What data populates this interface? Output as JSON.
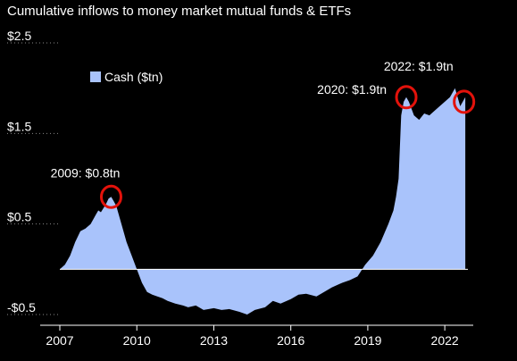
{
  "chart_data": {
    "type": "area",
    "title": "Cumulative inflows to money market mutual funds & ETFs",
    "xlabel": "",
    "ylabel": "",
    "xlim": [
      2007,
      2022.9
    ],
    "ylim": [
      -0.5,
      2.5
    ],
    "grid": false,
    "legend_position": "top-left",
    "x_ticks": [
      "2007",
      "2010",
      "2013",
      "2016",
      "2019",
      "2022"
    ],
    "y_ticks": [
      "$2.5",
      "$1.5",
      "$0.5",
      "-$0.5"
    ],
    "series": [
      {
        "name": "Cash ($tn)",
        "color": "#a9c3fb",
        "x": [
          2007.0,
          2007.2,
          2007.4,
          2007.6,
          2007.8,
          2008.0,
          2008.2,
          2008.4,
          2008.5,
          2008.6,
          2008.8,
          2008.9,
          2009.0,
          2009.1,
          2009.2,
          2009.4,
          2009.6,
          2009.8,
          2010.0,
          2010.2,
          2010.4,
          2010.6,
          2010.8,
          2011.0,
          2011.2,
          2011.5,
          2011.8,
          2012.0,
          2012.3,
          2012.6,
          2013.0,
          2013.3,
          2013.6,
          2014.0,
          2014.3,
          2014.6,
          2015.0,
          2015.3,
          2015.6,
          2016.0,
          2016.3,
          2016.6,
          2017.0,
          2017.3,
          2017.6,
          2018.0,
          2018.3,
          2018.6,
          2018.9,
          2019.2,
          2019.5,
          2019.8,
          2020.0,
          2020.1,
          2020.2,
          2020.3,
          2020.4,
          2020.5,
          2020.6,
          2020.8,
          2021.0,
          2021.2,
          2021.4,
          2021.6,
          2021.8,
          2022.0,
          2022.2,
          2022.4,
          2022.6,
          2022.8
        ],
        "values": [
          0.0,
          0.05,
          0.15,
          0.3,
          0.42,
          0.45,
          0.5,
          0.6,
          0.65,
          0.63,
          0.72,
          0.78,
          0.8,
          0.75,
          0.7,
          0.5,
          0.3,
          0.15,
          0.0,
          -0.15,
          -0.25,
          -0.28,
          -0.3,
          -0.32,
          -0.35,
          -0.38,
          -0.4,
          -0.42,
          -0.4,
          -0.45,
          -0.43,
          -0.45,
          -0.44,
          -0.47,
          -0.5,
          -0.45,
          -0.42,
          -0.35,
          -0.38,
          -0.33,
          -0.28,
          -0.27,
          -0.3,
          -0.25,
          -0.2,
          -0.15,
          -0.12,
          -0.08,
          0.05,
          0.15,
          0.3,
          0.5,
          0.65,
          0.8,
          1.0,
          1.7,
          1.85,
          1.9,
          1.85,
          1.7,
          1.65,
          1.72,
          1.7,
          1.75,
          1.8,
          1.85,
          1.9,
          2.0,
          1.8,
          1.9
        ]
      }
    ],
    "annotations": [
      {
        "text": "2009: $0.8tn",
        "x": 2009.0,
        "y": 0.8
      },
      {
        "text": "2020: $1.9tn",
        "x": 2020.5,
        "y": 1.9
      },
      {
        "text": "2022: $1.9tn",
        "x": 2022.75,
        "y": 1.85
      }
    ],
    "highlight_color": "#e3120b"
  }
}
